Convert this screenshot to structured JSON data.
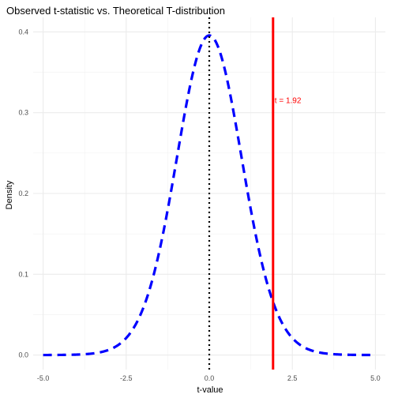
{
  "chart_data": {
    "type": "line",
    "title": "Observed t-statistic vs. Theoretical T-distribution",
    "xlabel": "t-value",
    "ylabel": "Density",
    "xlim": [
      -5.3,
      5.3
    ],
    "ylim": [
      -0.018,
      0.418
    ],
    "x_ticks": [
      -5,
      -2.5,
      0,
      2.5,
      5
    ],
    "x_tick_labels": [
      "-5.0",
      "-2.5",
      "0.0",
      "2.5",
      "5.0"
    ],
    "y_ticks": [
      0,
      0.1,
      0.2,
      0.3,
      0.4
    ],
    "y_tick_labels": [
      "0.0",
      "0.1",
      "0.2",
      "0.3",
      "0.4"
    ],
    "grid": true,
    "curve": {
      "distribution": "t",
      "df": 30,
      "x_range": [
        -5,
        5
      ],
      "color": "#0000ff",
      "style": "dashed"
    },
    "reference_lines": [
      {
        "x": 0,
        "color": "#000000",
        "style": "dotted"
      },
      {
        "x": 1.92,
        "color": "#ff0000",
        "style": "solid"
      }
    ],
    "annotations": [
      {
        "text": "t = 1.92",
        "x": 1.92,
        "y": 0.315,
        "color": "#ff0000"
      }
    ]
  }
}
